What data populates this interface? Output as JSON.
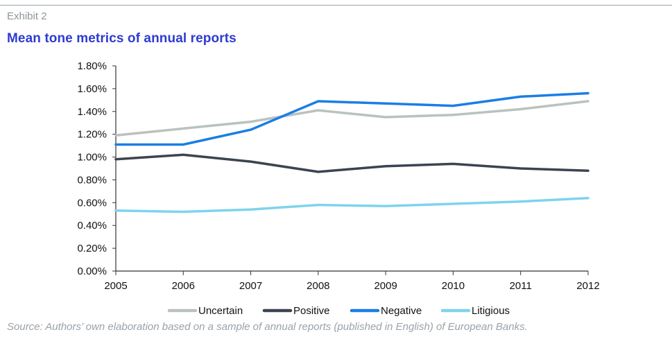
{
  "header": {
    "exhibit": "Exhibit 2"
  },
  "footer": {
    "source": "Source: Authors’ own elaboration based on a sample of annual reports (published in English) of European Banks."
  },
  "chart_data": {
    "type": "line",
    "title": "Mean tone metrics of annual reports",
    "xlabel": "",
    "ylabel": "",
    "x": [
      "2005",
      "2006",
      "2007",
      "2008",
      "2009",
      "2010",
      "2011",
      "2012"
    ],
    "ylim": [
      0,
      1.8
    ],
    "yticks": [
      0,
      0.2,
      0.4,
      0.6,
      0.8,
      1.0,
      1.2,
      1.4,
      1.6,
      1.8
    ],
    "ytick_labels": [
      "0.00%",
      "0.20%",
      "0.40%",
      "0.60%",
      "0.80%",
      "1.00%",
      "1.20%",
      "1.40%",
      "1.60%",
      "1.80%"
    ],
    "y_unit": "%",
    "grid": false,
    "legend_position": "bottom",
    "series": [
      {
        "name": "Uncertain",
        "color": "#b9c2bf",
        "values": [
          1.19,
          1.25,
          1.31,
          1.41,
          1.35,
          1.37,
          1.42,
          1.49
        ]
      },
      {
        "name": "Positive",
        "color": "#3b4450",
        "values": [
          0.98,
          1.02,
          0.96,
          0.87,
          0.92,
          0.94,
          0.9,
          0.88
        ]
      },
      {
        "name": "Negative",
        "color": "#1a7ee6",
        "values": [
          1.11,
          1.11,
          1.24,
          1.49,
          1.47,
          1.45,
          1.53,
          1.56
        ]
      },
      {
        "name": "Litigious",
        "color": "#7fd3ec",
        "values": [
          0.53,
          0.52,
          0.54,
          0.58,
          0.57,
          0.59,
          0.61,
          0.64
        ]
      }
    ]
  }
}
